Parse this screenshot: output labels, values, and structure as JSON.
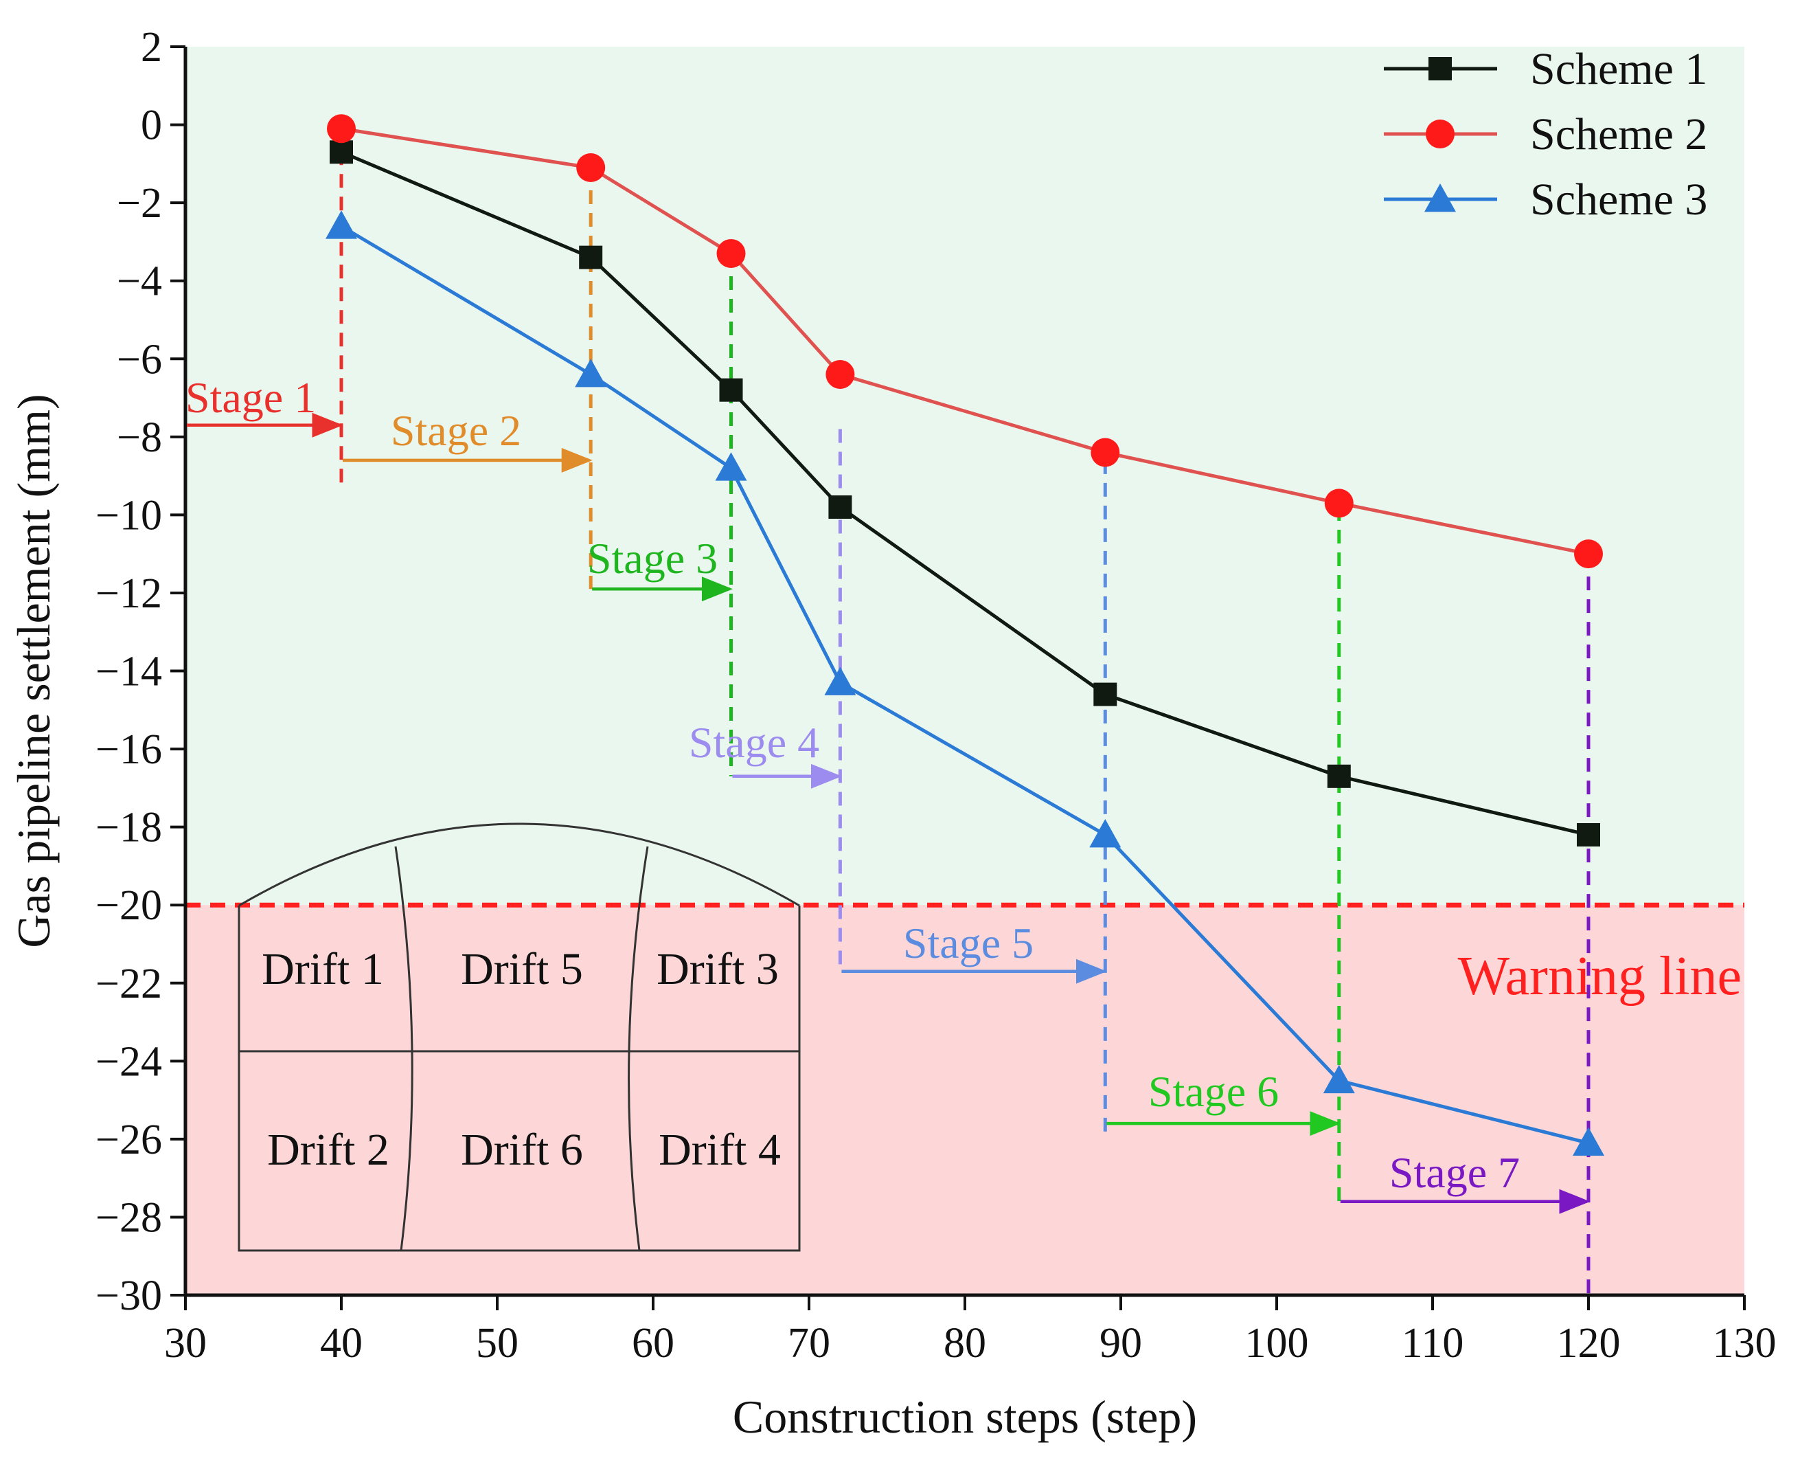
{
  "chart_data": {
    "type": "line",
    "xlabel": "Construction steps (step)",
    "ylabel": "Gas pipeline settlement (mm)",
    "xlim": [
      30,
      130
    ],
    "ylim": [
      -30,
      2
    ],
    "xticks": [
      30,
      40,
      50,
      60,
      70,
      80,
      90,
      100,
      110,
      120,
      130
    ],
    "yticks": [
      2,
      0,
      -2,
      -4,
      -6,
      -8,
      -10,
      -12,
      -14,
      -16,
      -18,
      -20,
      -22,
      -24,
      -26,
      -28,
      -30
    ],
    "ytick_labels": [
      "2",
      "0",
      "−2",
      "−4",
      "−6",
      "−8",
      "−10",
      "−12",
      "−14",
      "−16",
      "−18",
      "−20",
      "−22",
      "−24",
      "−26",
      "−28",
      "−30"
    ],
    "x": [
      40,
      56,
      65,
      72,
      89,
      104,
      120
    ],
    "series": [
      {
        "name": "Scheme 1",
        "color": "#111a11",
        "marker": "square",
        "values": [
          -0.7,
          -3.4,
          -6.8,
          -9.8,
          -14.6,
          -16.7,
          -18.2
        ]
      },
      {
        "name": "Scheme 2",
        "color": "#e0524f",
        "marker": "circle",
        "values": [
          -0.1,
          -1.1,
          -3.3,
          -6.4,
          -8.4,
          -9.7,
          -11.0
        ]
      },
      {
        "name": "Scheme 3",
        "color": "#2b7bd6",
        "marker": "triangle",
        "values": [
          -2.6,
          -6.4,
          -8.8,
          -14.3,
          -18.2,
          -24.5,
          -26.1
        ]
      }
    ],
    "legend_position": "top-right",
    "warning": {
      "label": "Warning line",
      "value": -20,
      "color": "#ff2020"
    },
    "regions": {
      "safe_color": "#eaf7ee",
      "warning_color": "#fdd7d7"
    },
    "stages": [
      {
        "label": "Stage 1",
        "color": "#e8312c",
        "x_start": 30,
        "x_end": 40,
        "arrow_y": -7.7,
        "vline_x": 40,
        "vline_top": -0.1,
        "vline_bottom": -9.2
      },
      {
        "label": "Stage 2",
        "color": "#e08c2a",
        "x_start": 40,
        "x_end": 56,
        "arrow_y": -8.6,
        "vline_x": 56,
        "vline_top": -1.1,
        "vline_bottom": -11.9
      },
      {
        "label": "Stage 3",
        "color": "#1fb51f",
        "x_start": 56,
        "x_end": 65,
        "arrow_y": -11.9,
        "vline_x": 65,
        "vline_top": -3.3,
        "vline_bottom": -16.7
      },
      {
        "label": "Stage 4",
        "color": "#9d8cf0",
        "x_start": 65,
        "x_end": 72,
        "arrow_y": -16.7,
        "vline_x": 72,
        "vline_top": -7.8,
        "vline_bottom": -21.7
      },
      {
        "label": "Stage 5",
        "color": "#5b8ce0",
        "x_start": 72,
        "x_end": 89,
        "arrow_y": -21.7,
        "vline_x": 89,
        "vline_top": -8.6,
        "vline_bottom": -25.9
      },
      {
        "label": "Stage 6",
        "color": "#22c822",
        "x_start": 89,
        "x_end": 104,
        "arrow_y": -25.6,
        "vline_x": 104,
        "vline_top": -9.8,
        "vline_bottom": -27.7
      },
      {
        "label": "Stage 7",
        "color": "#7a18c4",
        "x_start": 104,
        "x_end": 120,
        "arrow_y": -27.6,
        "vline_x": 120,
        "vline_top": -11.0,
        "vline_bottom": -30.0
      }
    ],
    "inset": {
      "drifts": [
        "Drift 1",
        "Drift 5",
        "Drift 3",
        "Drift 2",
        "Drift 6",
        "Drift 4"
      ]
    }
  }
}
